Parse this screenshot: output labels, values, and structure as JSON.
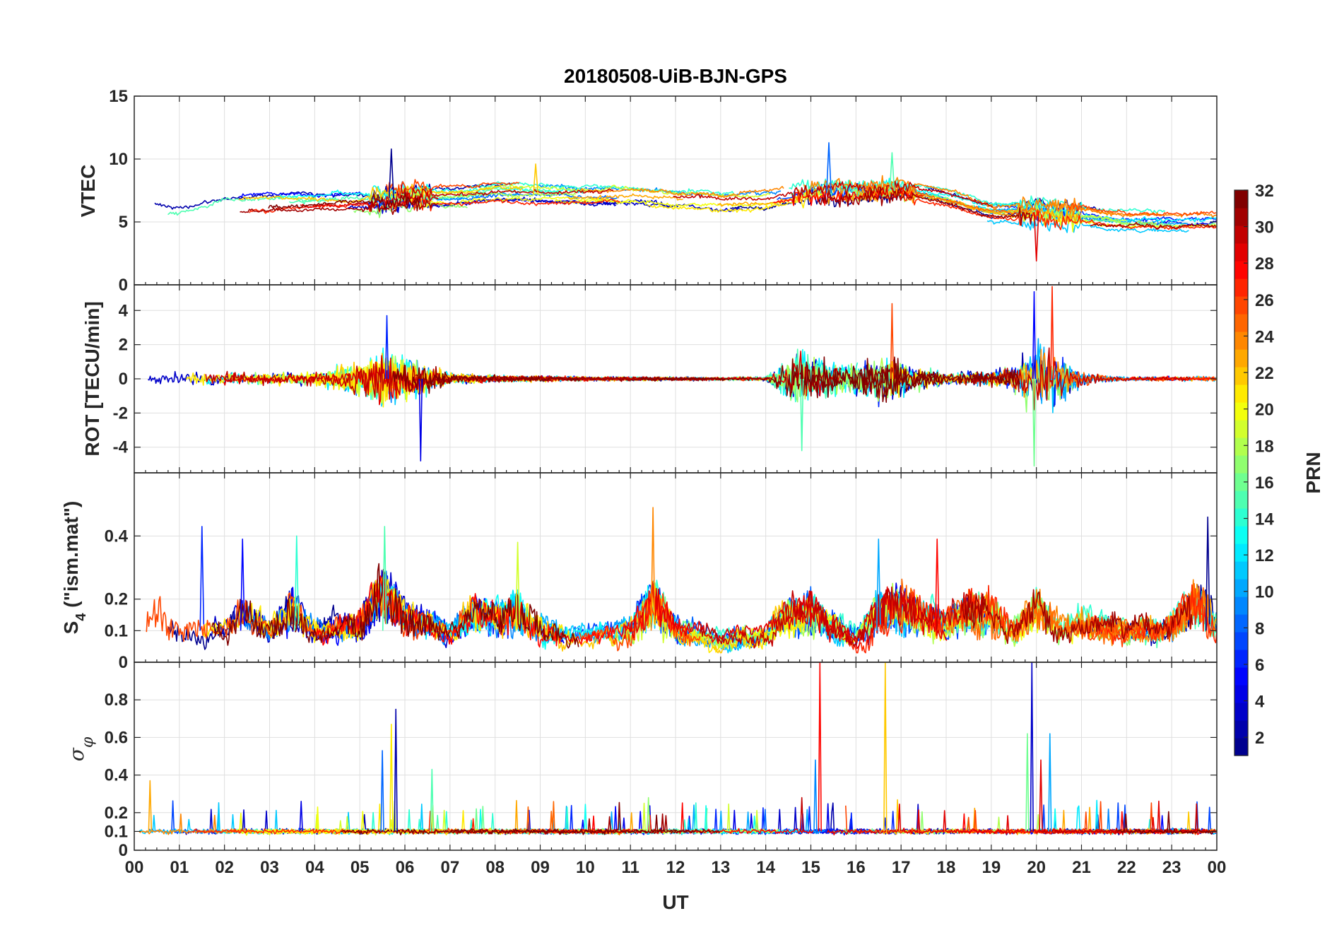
{
  "title": "20180508-UiB-BJN-GPS",
  "xlabel": "UT",
  "x_tick_labels": [
    "00",
    "01",
    "02",
    "03",
    "04",
    "05",
    "06",
    "07",
    "08",
    "09",
    "10",
    "11",
    "12",
    "13",
    "14",
    "15",
    "16",
    "17",
    "18",
    "19",
    "20",
    "21",
    "22",
    "23",
    "00"
  ],
  "colorbar": {
    "label": "PRN",
    "range": [
      1,
      32
    ],
    "tick_labels": [
      "2",
      "4",
      "6",
      "8",
      "10",
      "12",
      "14",
      "16",
      "18",
      "20",
      "22",
      "24",
      "26",
      "28",
      "30",
      "32"
    ],
    "colormap": "jet",
    "colors": [
      "#00008f",
      "#0000ff",
      "#007fff",
      "#00ffff",
      "#7fff7f",
      "#ffff00",
      "#ff7f00",
      "#ff0000",
      "#800000"
    ]
  },
  "chart_data": [
    {
      "type": "line",
      "panel": "vtec",
      "ylabel": "VTEC",
      "ylim": [
        0,
        15
      ],
      "y_tick_labels": [
        "0",
        "5",
        "10",
        "15"
      ],
      "grid": true,
      "series_by_prn_color": true,
      "baseline": [
        [
          0,
          5.8
        ],
        [
          1,
          5.5
        ],
        [
          2,
          6.2
        ],
        [
          3,
          6.5
        ],
        [
          4,
          6.5
        ],
        [
          5,
          6.6
        ],
        [
          6,
          7.0
        ],
        [
          7,
          6.9
        ],
        [
          8,
          7.3
        ],
        [
          9,
          7.2
        ],
        [
          10,
          7.0
        ],
        [
          11,
          7.0
        ],
        [
          12,
          6.7
        ],
        [
          13,
          6.5
        ],
        [
          14,
          6.6
        ],
        [
          15,
          7.3
        ],
        [
          16,
          7.3
        ],
        [
          17,
          7.5
        ],
        [
          18,
          6.8
        ],
        [
          19,
          5.8
        ],
        [
          20,
          5.8
        ],
        [
          21,
          5.5
        ],
        [
          22,
          5.0
        ],
        [
          23,
          5.0
        ],
        [
          24,
          5.0
        ]
      ],
      "notable_peaks": [
        {
          "x": 5.7,
          "y": 10.8
        },
        {
          "x": 15.4,
          "y": 11.3
        },
        {
          "x": 16.8,
          "y": 10.5
        },
        {
          "x": 8.9,
          "y": 9.6
        },
        {
          "x": 20.0,
          "y": 1.9
        }
      ]
    },
    {
      "type": "line",
      "panel": "rot",
      "ylabel": "ROT [TECU/min]",
      "ylim": [
        -5.5,
        5.5
      ],
      "y_tick_labels": [
        "-4",
        "-2",
        "0",
        "2",
        "4"
      ],
      "grid": true,
      "series_by_prn_color": true,
      "activity": [
        [
          0,
          0.5
        ],
        [
          1,
          0.6
        ],
        [
          2,
          0.55
        ],
        [
          3,
          0.5
        ],
        [
          4,
          0.6
        ],
        [
          5,
          1.5
        ],
        [
          5.5,
          2.5
        ],
        [
          6,
          1.8
        ],
        [
          6.5,
          1.2
        ],
        [
          7,
          0.5
        ],
        [
          8,
          0.3
        ],
        [
          9,
          0.25
        ],
        [
          10,
          0.2
        ],
        [
          11,
          0.2
        ],
        [
          12,
          0.15
        ],
        [
          13,
          0.15
        ],
        [
          14,
          0.2
        ],
        [
          14.7,
          2.5
        ],
        [
          15,
          2.0
        ],
        [
          15.5,
          1.6
        ],
        [
          16,
          1.5
        ],
        [
          16.7,
          2.2
        ],
        [
          17.2,
          1.2
        ],
        [
          18,
          0.5
        ],
        [
          19,
          0.7
        ],
        [
          19.5,
          1.2
        ],
        [
          20,
          3.2
        ],
        [
          20.5,
          2.2
        ],
        [
          21,
          0.7
        ],
        [
          21.5,
          0.3
        ],
        [
          22,
          0.2
        ],
        [
          23,
          0.2
        ],
        [
          24,
          0.25
        ]
      ],
      "notable_peaks": [
        {
          "x": 6.35,
          "y": -4.8
        },
        {
          "x": 14.8,
          "y": -4.2
        },
        {
          "x": 16.8,
          "y": 4.4
        },
        {
          "x": 19.95,
          "y": 5.1
        },
        {
          "x": 19.95,
          "y": -5.1
        },
        {
          "x": 20.35,
          "y": 5.4
        },
        {
          "x": 5.6,
          "y": 3.7
        }
      ]
    },
    {
      "type": "line",
      "panel": "s4",
      "ylabel": "S",
      "ylabel_sub": "4",
      "ylabel_rest": " (\"ism.mat\")",
      "ylim": [
        0,
        0.6
      ],
      "y_tick_labels": [
        "0",
        "0.1",
        "0.2",
        "0.4"
      ],
      "y_tick_values": [
        0,
        0.1,
        0.2,
        0.4
      ],
      "grid": true,
      "series_by_prn_color": true,
      "background": [
        [
          0,
          0.11
        ],
        [
          0.5,
          0.2
        ],
        [
          1,
          0.12
        ],
        [
          2,
          0.12
        ],
        [
          2.5,
          0.2
        ],
        [
          3,
          0.13
        ],
        [
          3.5,
          0.22
        ],
        [
          4,
          0.1
        ],
        [
          5,
          0.15
        ],
        [
          5.5,
          0.3
        ],
        [
          6,
          0.18
        ],
        [
          6.5,
          0.15
        ],
        [
          7,
          0.1
        ],
        [
          7.5,
          0.2
        ],
        [
          8,
          0.18
        ],
        [
          8.5,
          0.2
        ],
        [
          9,
          0.14
        ],
        [
          10,
          0.08
        ],
        [
          11,
          0.12
        ],
        [
          11.5,
          0.25
        ],
        [
          12,
          0.12
        ],
        [
          13,
          0.08
        ],
        [
          14,
          0.1
        ],
        [
          14.5,
          0.18
        ],
        [
          15,
          0.2
        ],
        [
          16,
          0.08
        ],
        [
          16.5,
          0.2
        ],
        [
          17,
          0.22
        ],
        [
          18,
          0.15
        ],
        [
          18.5,
          0.2
        ],
        [
          19,
          0.2
        ],
        [
          19.5,
          0.12
        ],
        [
          20,
          0.22
        ],
        [
          20.5,
          0.12
        ],
        [
          21,
          0.15
        ],
        [
          22,
          0.12
        ],
        [
          23,
          0.14
        ],
        [
          23.5,
          0.25
        ],
        [
          24,
          0.15
        ]
      ],
      "notable_peaks": [
        {
          "x": 1.5,
          "y": 0.43
        },
        {
          "x": 5.55,
          "y": 0.43
        },
        {
          "x": 11.5,
          "y": 0.49
        },
        {
          "x": 23.8,
          "y": 0.46
        },
        {
          "x": 16.5,
          "y": 0.39
        },
        {
          "x": 8.5,
          "y": 0.38
        },
        {
          "x": 17.8,
          "y": 0.39
        },
        {
          "x": 2.4,
          "y": 0.39
        },
        {
          "x": 3.6,
          "y": 0.4
        }
      ]
    },
    {
      "type": "line",
      "panel": "sigma_phi",
      "ylabel": "σ",
      "ylabel_sub": "φ",
      "ylim": [
        0,
        1
      ],
      "y_tick_labels": [
        "0",
        "0.1",
        "0.2",
        "0.4",
        "0.6",
        "0.8"
      ],
      "y_tick_values": [
        0,
        0.1,
        0.2,
        0.4,
        0.6,
        0.8
      ],
      "grid": true,
      "series_by_prn_color": true,
      "baseline": 0.1,
      "notable_peaks": [
        {
          "x": 5.5,
          "y": 0.53
        },
        {
          "x": 5.7,
          "y": 0.67
        },
        {
          "x": 5.8,
          "y": 0.75
        },
        {
          "x": 6.6,
          "y": 0.43
        },
        {
          "x": 15.2,
          "y": 1.0
        },
        {
          "x": 15.1,
          "y": 0.48
        },
        {
          "x": 16.65,
          "y": 1.0
        },
        {
          "x": 19.9,
          "y": 1.0
        },
        {
          "x": 19.8,
          "y": 0.62
        },
        {
          "x": 20.1,
          "y": 0.48
        },
        {
          "x": 20.3,
          "y": 0.62
        },
        {
          "x": 0.35,
          "y": 0.37
        },
        {
          "x": 3.7,
          "y": 0.26
        },
        {
          "x": 11.4,
          "y": 0.28
        },
        {
          "x": 14.8,
          "y": 0.28
        }
      ]
    }
  ]
}
